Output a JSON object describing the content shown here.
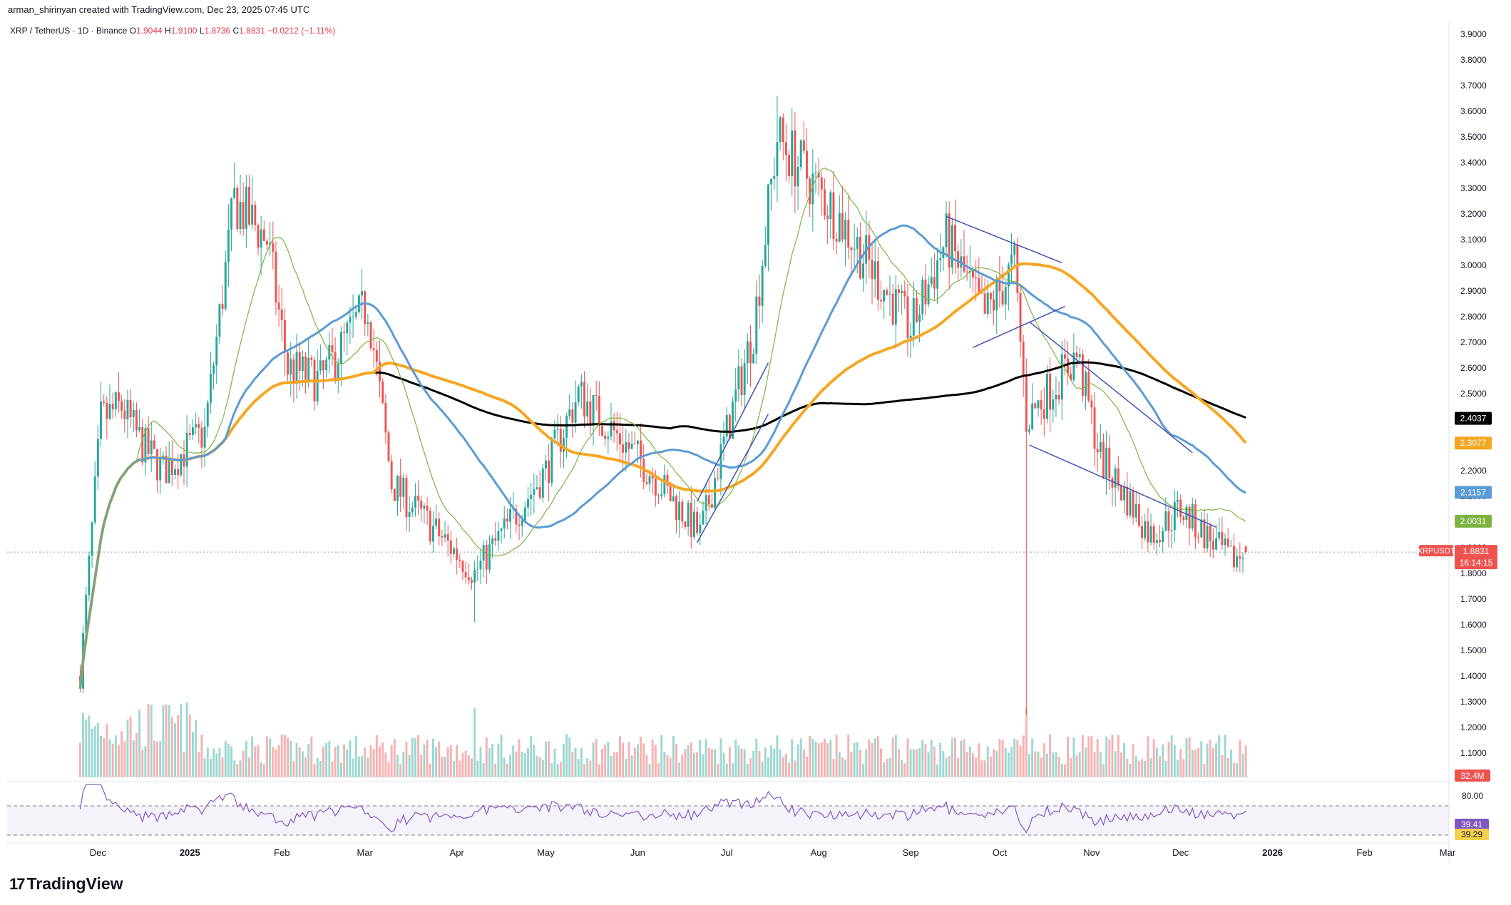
{
  "header": {
    "credit": "arman_shirinyan created with TradingView.com, Dec 23, 2025 07:45 UTC"
  },
  "symbol": {
    "name": "XRP / TetherUS · 1D · Binance",
    "open_label": "O",
    "open": "1.9044",
    "high_label": "H",
    "high": "1.9100",
    "low_label": "L",
    "low": "1.8736",
    "close_label": "C",
    "close": "1.8831",
    "change": "−0.0212 (−1.11%)"
  },
  "footer": {
    "brand": "TradingView"
  },
  "colors": {
    "up": "#26a69a",
    "down": "#ef5350",
    "ma_black": "#000000",
    "ma_orange": "#f5a623",
    "ma_blue": "#5b9bd5",
    "ma_green": "#7cb342",
    "trendline": "#3f51b5",
    "rsi": "#7e57c2"
  },
  "chart_data": [
    {
      "type": "candlestick",
      "series_name": "XRPUSDT",
      "ylim": [
        1.0,
        3.95
      ],
      "price_ticks": [
        "1.1000",
        "1.2000",
        "1.3000",
        "1.4000",
        "1.5000",
        "1.6000",
        "1.7000",
        "1.8000",
        "1.9000",
        "2.0000",
        "2.1000",
        "2.2000",
        "2.3000",
        "2.4000",
        "2.5000",
        "2.6000",
        "2.7000",
        "2.8000",
        "2.9000",
        "3.0000",
        "3.1000",
        "3.2000",
        "3.3000",
        "3.4000",
        "3.5000",
        "3.6000",
        "3.7000",
        "3.8000",
        "3.9000"
      ],
      "time_ticks": [
        "Dec",
        "2025",
        "Feb",
        "Mar",
        "Apr",
        "May",
        "Jun",
        "Jul",
        "Aug",
        "Sep",
        "Oct",
        "Nov",
        "Dec",
        "2026",
        "Feb",
        "Mar"
      ],
      "keypoints_close": [
        {
          "date": "2024-11-25",
          "close": 1.4
        },
        {
          "date": "2024-12-02",
          "close": 2.4
        },
        {
          "date": "2024-12-09",
          "close": 2.45
        },
        {
          "date": "2024-12-16",
          "close": 2.3
        },
        {
          "date": "2024-12-23",
          "close": 2.2
        },
        {
          "date": "2025-01-06",
          "close": 2.35
        },
        {
          "date": "2025-01-16",
          "close": 3.25
        },
        {
          "date": "2025-01-27",
          "close": 3.1
        },
        {
          "date": "2025-02-03",
          "close": 2.6
        },
        {
          "date": "2025-02-14",
          "close": 2.55
        },
        {
          "date": "2025-03-02",
          "close": 2.85
        },
        {
          "date": "2025-03-10",
          "close": 2.15
        },
        {
          "date": "2025-04-07",
          "close": 1.8
        },
        {
          "date": "2025-05-01",
          "close": 2.2
        },
        {
          "date": "2025-05-12",
          "close": 2.5
        },
        {
          "date": "2025-06-05",
          "close": 2.2
        },
        {
          "date": "2025-06-22",
          "close": 1.95
        },
        {
          "date": "2025-07-10",
          "close": 2.75
        },
        {
          "date": "2025-07-18",
          "close": 3.5
        },
        {
          "date": "2025-08-07",
          "close": 3.2
        },
        {
          "date": "2025-09-01",
          "close": 2.75
        },
        {
          "date": "2025-09-13",
          "close": 3.1
        },
        {
          "date": "2025-09-26",
          "close": 2.8
        },
        {
          "date": "2025-10-06",
          "close": 3.0
        },
        {
          "date": "2025-10-10",
          "close": 2.4
        },
        {
          "date": "2025-10-27",
          "close": 2.65
        },
        {
          "date": "2025-11-04",
          "close": 2.25
        },
        {
          "date": "2025-11-21",
          "close": 1.95
        },
        {
          "date": "2025-12-01",
          "close": 2.05
        },
        {
          "date": "2025-12-18",
          "close": 1.85
        },
        {
          "date": "2025-12-23",
          "close": 1.8831
        }
      ],
      "notable_extremes": [
        {
          "date": "2025-01-16",
          "high": 3.4
        },
        {
          "date": "2025-04-07",
          "low": 1.61
        },
        {
          "date": "2025-07-18",
          "high": 3.66
        },
        {
          "date": "2025-10-10",
          "low": 1.25
        }
      ],
      "moving_averages": [
        {
          "color": "#000000",
          "last": "2.4037"
        },
        {
          "color": "#f5a623",
          "last": "2.3077"
        },
        {
          "color": "#5b9bd5",
          "last": "2.1157"
        },
        {
          "color": "#7cb342",
          "last": "2.0031"
        }
      ],
      "last_price": {
        "label": "XRPUSDT",
        "value": "1.8831",
        "countdown": "16:14:15"
      },
      "volume": {
        "last": "32.4M"
      }
    },
    {
      "type": "line",
      "series_name": "RSI",
      "levels": [
        "80.00"
      ],
      "last_values": [
        "39.41",
        "39.29"
      ]
    }
  ]
}
